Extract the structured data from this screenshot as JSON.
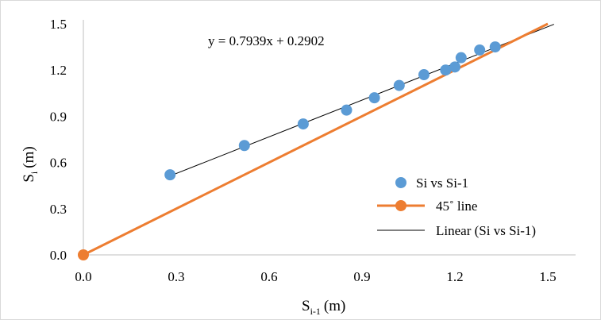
{
  "chart_data": {
    "type": "scatter",
    "xlabel": {
      "main": "S",
      "sub": "i-1",
      "unit": "(m)"
    },
    "ylabel": {
      "main": "S",
      "sub": "i",
      "unit": "(m)"
    },
    "xlim": [
      0,
      1.5
    ],
    "ylim": [
      0,
      1.5
    ],
    "x_ticks": [
      "0.0",
      "0.3",
      "0.6",
      "0.9",
      "1.2",
      "1.5"
    ],
    "y_ticks": [
      "0.0",
      "0.3",
      "0.6",
      "0.9",
      "1.2",
      "1.5"
    ],
    "grid": false,
    "legend_position": "lower-right",
    "annotation": "y = 0.7939x + 0.2902",
    "series": [
      {
        "name": "Si vs Si-1",
        "kind": "scatter",
        "color": "#5b9bd5",
        "points": [
          [
            0.28,
            0.52
          ],
          [
            0.52,
            0.71
          ],
          [
            0.71,
            0.85
          ],
          [
            0.85,
            0.94
          ],
          [
            0.94,
            1.02
          ],
          [
            1.02,
            1.1
          ],
          [
            1.1,
            1.17
          ],
          [
            1.17,
            1.2
          ],
          [
            1.2,
            1.22
          ],
          [
            1.22,
            1.28
          ],
          [
            1.28,
            1.33
          ],
          [
            1.33,
            1.35
          ]
        ]
      },
      {
        "name": "45˚ line",
        "kind": "line-with-marker",
        "color": "#ed7d31",
        "points": [
          [
            0,
            0
          ],
          [
            1.5,
            1.5
          ]
        ]
      },
      {
        "name": "Linear (Si vs Si-1)",
        "kind": "trendline",
        "color": "#000000",
        "slope": 0.7939,
        "intercept": 0.2902,
        "x_range": [
          0.28,
          1.52
        ]
      }
    ]
  }
}
